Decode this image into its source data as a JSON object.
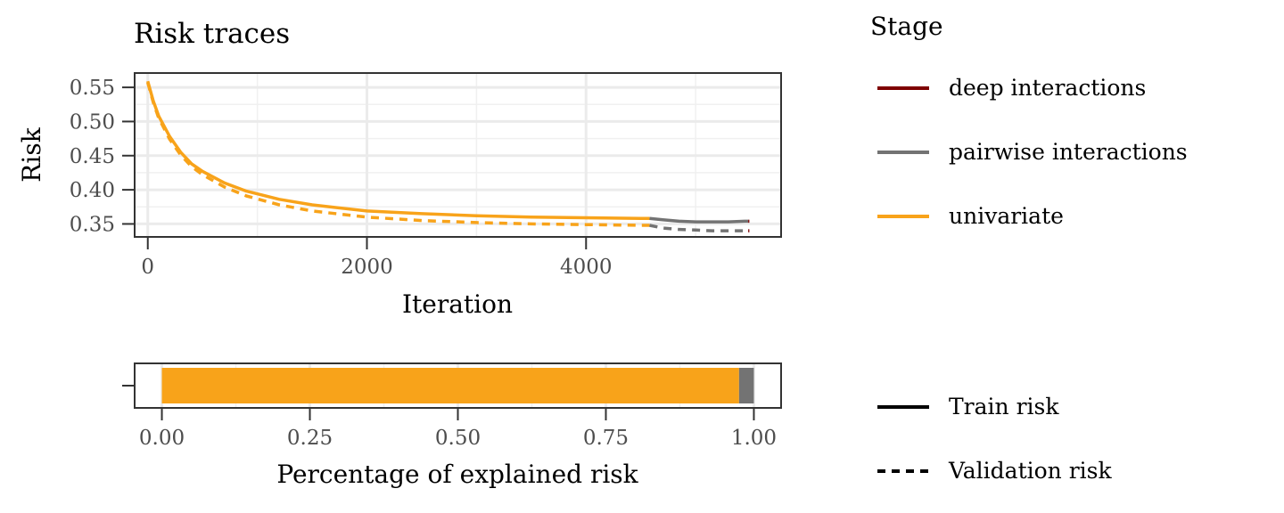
{
  "chart_data": [
    {
      "type": "line",
      "title": "Risk traces",
      "xlabel": "Iteration",
      "ylabel": "Risk",
      "xlim": [
        -120,
        5780
      ],
      "ylim": [
        0.331,
        0.571
      ],
      "xticks": [
        0,
        2000,
        4000
      ],
      "xtick_labels": [
        "0",
        "2000",
        "4000"
      ],
      "yticks": [
        0.35,
        0.4,
        0.45,
        0.5,
        0.55
      ],
      "ytick_labels": [
        "0.35",
        "0.40",
        "0.45",
        "0.50",
        "0.55"
      ],
      "grid": true,
      "series": [
        {
          "stage": "univariate",
          "risk": "Train risk",
          "color": "#F8A31A",
          "dash": "solid",
          "x": [
            0,
            50,
            100,
            200,
            300,
            400,
            500,
            700,
            900,
            1200,
            1500,
            2000,
            2500,
            3000,
            3500,
            4000,
            4500,
            4580
          ],
          "y": [
            0.559,
            0.53,
            0.508,
            0.478,
            0.455,
            0.438,
            0.427,
            0.41,
            0.398,
            0.386,
            0.378,
            0.369,
            0.365,
            0.362,
            0.36,
            0.359,
            0.358,
            0.358
          ]
        },
        {
          "stage": "univariate",
          "risk": "Validation risk",
          "color": "#F8A31A",
          "dash": "dashed",
          "x": [
            0,
            50,
            100,
            200,
            300,
            400,
            500,
            700,
            900,
            1200,
            1500,
            2000,
            2500,
            3000,
            3500,
            4000,
            4500,
            4580
          ],
          "y": [
            0.557,
            0.528,
            0.505,
            0.474,
            0.451,
            0.434,
            0.422,
            0.404,
            0.391,
            0.378,
            0.369,
            0.36,
            0.355,
            0.352,
            0.35,
            0.349,
            0.348,
            0.348
          ]
        },
        {
          "stage": "pairwise interactions",
          "risk": "Train risk",
          "color": "#737373",
          "dash": "solid",
          "x": [
            4580,
            4700,
            4850,
            5000,
            5150,
            5300,
            5450,
            5480
          ],
          "y": [
            0.358,
            0.356,
            0.354,
            0.353,
            0.353,
            0.353,
            0.354,
            0.354
          ]
        },
        {
          "stage": "pairwise interactions",
          "risk": "Validation risk",
          "color": "#737373",
          "dash": "dashed",
          "x": [
            4580,
            4700,
            4850,
            5000,
            5150,
            5300,
            5450,
            5480
          ],
          "y": [
            0.348,
            0.344,
            0.342,
            0.341,
            0.34,
            0.34,
            0.34,
            0.34
          ]
        },
        {
          "stage": "deep interactions",
          "risk": "Train risk",
          "color": "#7E0000",
          "dash": "solid",
          "x": [
            5480,
            5490
          ],
          "y": [
            0.354,
            0.354
          ]
        },
        {
          "stage": "deep interactions",
          "risk": "Validation risk",
          "color": "#7E0000",
          "dash": "dashed",
          "x": [
            5480,
            5490
          ],
          "y": [
            0.34,
            0.34
          ]
        }
      ]
    },
    {
      "type": "bar",
      "orientation": "horizontal",
      "stacked": true,
      "xlabel": "Percentage of explained risk",
      "xlim": [
        -0.046,
        1.046
      ],
      "xticks": [
        0,
        0.25,
        0.5,
        0.75,
        1
      ],
      "xtick_labels": [
        "0.00",
        "0.25",
        "0.50",
        "0.75",
        "1.00"
      ],
      "segments": [
        {
          "stage": "univariate",
          "value": 0.975,
          "color": "#F8A31A"
        },
        {
          "stage": "pairwise interactions",
          "value": 0.025,
          "color": "#737373"
        },
        {
          "stage": "deep interactions",
          "value": 0.0,
          "color": "#7E0000"
        }
      ]
    }
  ],
  "legend": {
    "title": "Stage",
    "items": [
      {
        "label": "deep interactions",
        "color": "#7E0000"
      },
      {
        "label": "pairwise interactions",
        "color": "#737373"
      },
      {
        "label": "univariate",
        "color": "#F8A31A"
      }
    ],
    "linetype_items": [
      {
        "label": "Train risk",
        "dash": "solid"
      },
      {
        "label": "Validation risk",
        "dash": "dashed"
      }
    ]
  }
}
